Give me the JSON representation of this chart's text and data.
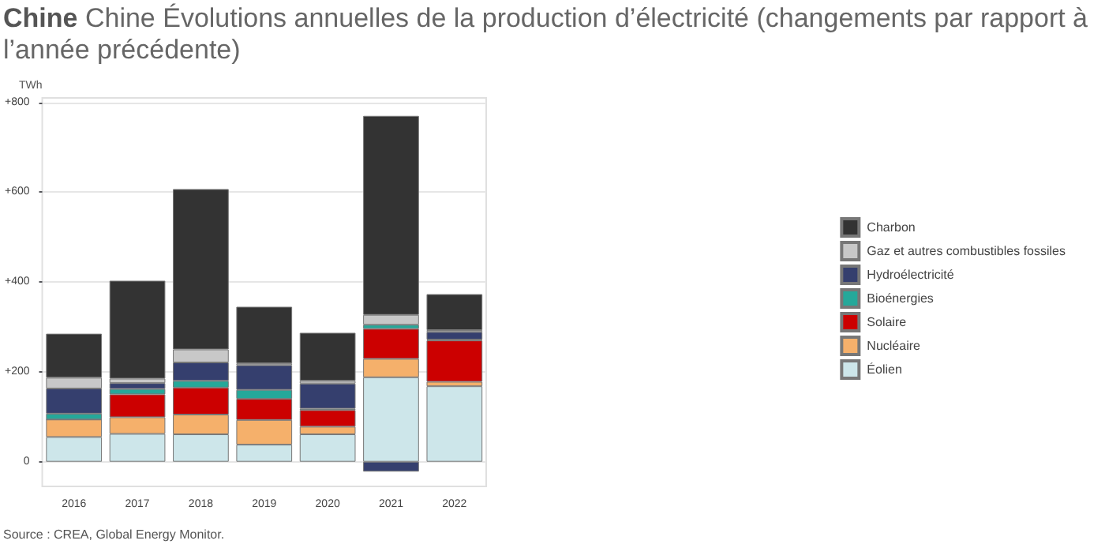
{
  "chart_data": {
    "type": "bar",
    "title": "Chine",
    "subtitle": "Chine Évolutions annuelles de la production d’électricité (changements par rapport à l’année précédente)",
    "ylabel": "TWh",
    "categories": [
      "2016",
      "2017",
      "2018",
      "2019",
      "2020",
      "2021",
      "2022"
    ],
    "stacked": true,
    "series": [
      {
        "name": "Éolien",
        "color": "#cde6ea",
        "values": [
          55,
          62,
          61,
          38,
          61,
          188,
          168
        ]
      },
      {
        "name": "Nucléaire",
        "color": "#f5b06b",
        "values": [
          39,
          37,
          44,
          55,
          17,
          41,
          10
        ]
      },
      {
        "name": "Solaire",
        "color": "#cc0000",
        "values": [
          0,
          51,
          60,
          47,
          37,
          67,
          92
        ]
      },
      {
        "name": "Bioénergies",
        "color": "#25a89a",
        "values": [
          13,
          12,
          15,
          20,
          3,
          9,
          2
        ]
      },
      {
        "name": "Hydroélectricité",
        "color": "#353f6e",
        "values": [
          56,
          13,
          41,
          55,
          56,
          -22,
          17
        ]
      },
      {
        "name": "Gaz et autres combustibles fossiles",
        "color": "#c8c8c8",
        "values": [
          24,
          10,
          29,
          4,
          6,
          22,
          4
        ]
      },
      {
        "name": "Charbon",
        "color": "#333333",
        "values": [
          98,
          218,
          357,
          126,
          107,
          443,
          80
        ]
      }
    ],
    "ylim": [
      -55,
      810
    ],
    "yticks": [
      {
        "value": 0,
        "label": "0"
      },
      {
        "value": 200,
        "label": "+200"
      },
      {
        "value": 400,
        "label": "+400"
      },
      {
        "value": 600,
        "label": "+600"
      },
      {
        "value": 800,
        "label": "+800"
      }
    ],
    "grid": "y",
    "legend": "right",
    "annotations": [
      "Source : CREA, Global Energy Monitor."
    ]
  }
}
